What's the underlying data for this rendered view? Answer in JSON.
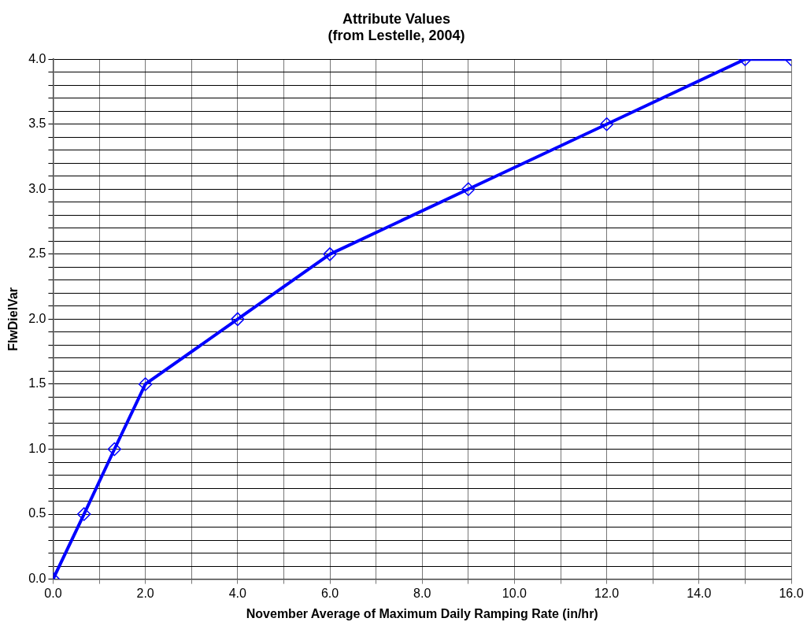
{
  "chart_data": {
    "type": "line",
    "title": "Attribute Values\n(from Lestelle, 2004)",
    "xlabel": "November Average of Maximum Daily Ramping Rate (in/hr)",
    "ylabel": "FlwDielVar",
    "x": [
      0,
      0.67,
      1.33,
      2,
      4,
      6,
      9,
      12,
      15,
      16
    ],
    "series": [
      {
        "color": "#0000ff",
        "values": [
          0,
          0.5,
          1,
          1.5,
          2,
          2.5,
          3,
          3.5,
          4,
          4
        ]
      }
    ],
    "xlim": [
      0,
      16
    ],
    "ylim": [
      0,
      4
    ],
    "xticks": [
      {
        "value": 0,
        "label": "0.0"
      },
      {
        "value": 1,
        "label": null
      },
      {
        "value": 2,
        "label": "2.0"
      },
      {
        "value": 3,
        "label": null
      },
      {
        "value": 4,
        "label": "4.0"
      },
      {
        "value": 5,
        "label": null
      },
      {
        "value": 6,
        "label": "6.0"
      },
      {
        "value": 7,
        "label": null
      },
      {
        "value": 8,
        "label": "8.0"
      },
      {
        "value": 9,
        "label": null
      },
      {
        "value": 10,
        "label": "10.0"
      },
      {
        "value": 11,
        "label": null
      },
      {
        "value": 12,
        "label": "12.0"
      },
      {
        "value": 13,
        "label": null
      },
      {
        "value": 14,
        "label": "14.0"
      },
      {
        "value": 15,
        "label": null
      },
      {
        "value": 16,
        "label": "16.0"
      }
    ],
    "yticks": [
      {
        "value": 0,
        "label": "0.0"
      },
      {
        "value": 0.1,
        "label": null
      },
      {
        "value": 0.2,
        "label": null
      },
      {
        "value": 0.3,
        "label": null
      },
      {
        "value": 0.4,
        "label": null
      },
      {
        "value": 0.5,
        "label": "0.5"
      },
      {
        "value": 0.6,
        "label": null
      },
      {
        "value": 0.7,
        "label": null
      },
      {
        "value": 0.8,
        "label": null
      },
      {
        "value": 0.9,
        "label": null
      },
      {
        "value": 1,
        "label": "1.0"
      },
      {
        "value": 1.1,
        "label": null
      },
      {
        "value": 1.2,
        "label": null
      },
      {
        "value": 1.3,
        "label": null
      },
      {
        "value": 1.4,
        "label": null
      },
      {
        "value": 1.5,
        "label": "1.5"
      },
      {
        "value": 1.6,
        "label": null
      },
      {
        "value": 1.7,
        "label": null
      },
      {
        "value": 1.8,
        "label": null
      },
      {
        "value": 1.9,
        "label": null
      },
      {
        "value": 2,
        "label": "2.0"
      },
      {
        "value": 2.1,
        "label": null
      },
      {
        "value": 2.2,
        "label": null
      },
      {
        "value": 2.3,
        "label": null
      },
      {
        "value": 2.4,
        "label": null
      },
      {
        "value": 2.5,
        "label": "2.5"
      },
      {
        "value": 2.6,
        "label": null
      },
      {
        "value": 2.7,
        "label": null
      },
      {
        "value": 2.8,
        "label": null
      },
      {
        "value": 2.9,
        "label": null
      },
      {
        "value": 3,
        "label": "3.0"
      },
      {
        "value": 3.1,
        "label": null
      },
      {
        "value": 3.2,
        "label": null
      },
      {
        "value": 3.3,
        "label": null
      },
      {
        "value": 3.4,
        "label": null
      },
      {
        "value": 3.5,
        "label": "3.5"
      },
      {
        "value": 3.6,
        "label": null
      },
      {
        "value": 3.7,
        "label": null
      },
      {
        "value": 3.8,
        "label": null
      },
      {
        "value": 3.9,
        "label": null
      },
      {
        "value": 4,
        "label": "4.0"
      }
    ],
    "grid": true,
    "legend": false,
    "marker": "diamond",
    "line_style": "solid"
  }
}
